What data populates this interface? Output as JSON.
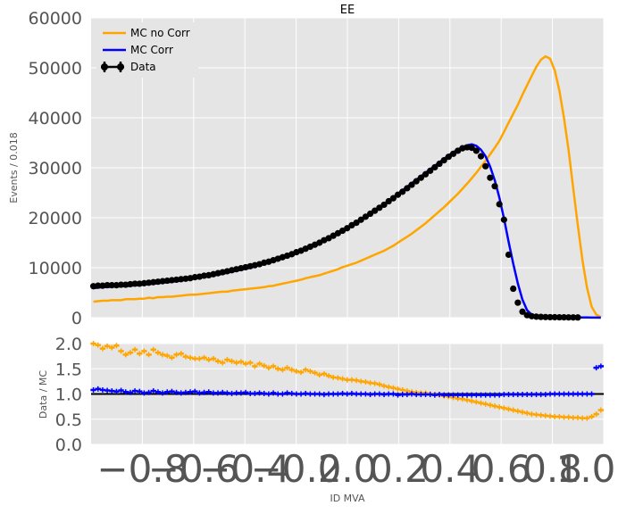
{
  "chart_data": [
    {
      "type": "line",
      "title": "EE",
      "ylabel": "Events / 0.018",
      "xlim": [
        -1.0,
        1.0
      ],
      "ylim": [
        0,
        60000
      ],
      "yticks": [
        "0",
        "10000",
        "20000",
        "30000",
        "40000",
        "50000",
        "60000"
      ],
      "grid": true,
      "legend_position": "top-left",
      "x": [
        -0.991,
        -0.973,
        -0.955,
        -0.937,
        -0.919,
        -0.901,
        -0.883,
        -0.865,
        -0.847,
        -0.829,
        -0.811,
        -0.793,
        -0.775,
        -0.757,
        -0.739,
        -0.721,
        -0.703,
        -0.685,
        -0.667,
        -0.649,
        -0.631,
        -0.613,
        -0.595,
        -0.577,
        -0.559,
        -0.541,
        -0.523,
        -0.505,
        -0.487,
        -0.469,
        -0.451,
        -0.433,
        -0.415,
        -0.397,
        -0.379,
        -0.361,
        -0.343,
        -0.325,
        -0.307,
        -0.289,
        -0.271,
        -0.253,
        -0.235,
        -0.217,
        -0.199,
        -0.181,
        -0.163,
        -0.145,
        -0.127,
        -0.109,
        -0.091,
        -0.073,
        -0.055,
        -0.037,
        -0.019,
        -0.001,
        0.017,
        0.035,
        0.053,
        0.071,
        0.089,
        0.107,
        0.125,
        0.143,
        0.161,
        0.179,
        0.197,
        0.215,
        0.233,
        0.251,
        0.269,
        0.287,
        0.305,
        0.323,
        0.341,
        0.359,
        0.377,
        0.395,
        0.413,
        0.431,
        0.449,
        0.467,
        0.485,
        0.503,
        0.521,
        0.539,
        0.557,
        0.575,
        0.593,
        0.611,
        0.629,
        0.647,
        0.665,
        0.683,
        0.701,
        0.719,
        0.737,
        0.755,
        0.773,
        0.791,
        0.809,
        0.827,
        0.845,
        0.863,
        0.881,
        0.899,
        0.917,
        0.935,
        0.953,
        0.971,
        0.989
      ],
      "series": [
        {
          "name": "MC no Corr",
          "color": "#ffa500",
          "values": [
            3200,
            3300,
            3400,
            3400,
            3500,
            3500,
            3500,
            3700,
            3700,
            3700,
            3800,
            3800,
            4000,
            3900,
            4100,
            4100,
            4200,
            4200,
            4300,
            4400,
            4500,
            4600,
            4600,
            4700,
            4800,
            4900,
            5000,
            5100,
            5200,
            5200,
            5400,
            5500,
            5600,
            5700,
            5800,
            5900,
            6000,
            6100,
            6300,
            6400,
            6600,
            6800,
            7000,
            7200,
            7400,
            7600,
            7900,
            8100,
            8300,
            8500,
            8800,
            9100,
            9400,
            9700,
            10100,
            10400,
            10700,
            11000,
            11400,
            11800,
            12200,
            12600,
            13000,
            13400,
            13900,
            14400,
            15000,
            15600,
            16200,
            16800,
            17500,
            18200,
            18900,
            19700,
            20500,
            21300,
            22100,
            23000,
            23900,
            24800,
            25800,
            26800,
            27900,
            29000,
            30200,
            31400,
            32700,
            34000,
            35400,
            37200,
            39000,
            40800,
            42600,
            44600,
            46500,
            48400,
            50200,
            51600,
            52300,
            51800,
            49500,
            45500,
            40000,
            33500,
            26000,
            18500,
            11500,
            6000,
            2200,
            600,
            100
          ]
        },
        {
          "name": "MC Corr",
          "color": "#0000ff",
          "values": [
            5900,
            6000,
            6100,
            6100,
            6200,
            6200,
            6300,
            6300,
            6400,
            6500,
            6500,
            6600,
            6700,
            6800,
            6900,
            7000,
            7100,
            7200,
            7300,
            7400,
            7600,
            7700,
            7800,
            8000,
            8100,
            8300,
            8500,
            8600,
            8800,
            9000,
            9200,
            9400,
            9600,
            9800,
            10000,
            10300,
            10500,
            10800,
            11000,
            11300,
            11600,
            11900,
            12200,
            12600,
            12900,
            13300,
            13700,
            14100,
            14500,
            14900,
            15400,
            15800,
            16300,
            16800,
            17300,
            17900,
            18400,
            19000,
            19600,
            20200,
            20800,
            21400,
            22100,
            22700,
            23400,
            24100,
            24800,
            25500,
            26200,
            26900,
            27600,
            28300,
            29000,
            29700,
            30400,
            31100,
            31800,
            32500,
            33100,
            33600,
            34100,
            34500,
            34700,
            34400,
            33600,
            32300,
            30200,
            27500,
            24000,
            19800,
            15200,
            10800,
            6800,
            3600,
            1500,
            600,
            300,
            200,
            150,
            120,
            100,
            90,
            80,
            70,
            60,
            50,
            40,
            30,
            20,
            10,
            5
          ]
        },
        {
          "name": "Data",
          "color": "#000000",
          "values": [
            6300,
            6400,
            6400,
            6500,
            6500,
            6500,
            6600,
            6600,
            6700,
            6800,
            6800,
            6900,
            7000,
            7100,
            7200,
            7300,
            7400,
            7500,
            7600,
            7700,
            7800,
            7900,
            8100,
            8200,
            8400,
            8500,
            8700,
            8900,
            9100,
            9300,
            9500,
            9700,
            9900,
            10100,
            10300,
            10500,
            10700,
            11000,
            11200,
            11500,
            11800,
            12100,
            12400,
            12700,
            13100,
            13400,
            13800,
            14200,
            14600,
            15000,
            15500,
            15900,
            16400,
            16900,
            17400,
            17900,
            18500,
            19000,
            19600,
            20200,
            20800,
            21400,
            22000,
            22600,
            23300,
            23900,
            24600,
            25200,
            25900,
            26600,
            27300,
            28000,
            28700,
            29400,
            30100,
            30800,
            31500,
            32200,
            32800,
            33400,
            33900,
            34100,
            34000,
            33400,
            32300,
            30300,
            28000,
            26300,
            22700,
            19600,
            12600,
            5800,
            3000,
            1200,
            500,
            300,
            200,
            150,
            120,
            100,
            90,
            80,
            70,
            60,
            50,
            40,
            30,
            20,
            10,
            5,
            5
          ]
        }
      ]
    },
    {
      "type": "line",
      "ylabel": "Data / MC",
      "xlabel": "ID MVA",
      "xlim": [
        -1.0,
        1.0
      ],
      "ylim": [
        0,
        2
      ],
      "yticks": [
        "0.0",
        "0.5",
        "1.0",
        "1.5",
        "2.0"
      ],
      "xticks": [
        "−0.8",
        "−0.6",
        "−0.4",
        "−0.2",
        "0.0",
        "0.2",
        "0.4",
        "0.6",
        "0.8",
        "1.0"
      ],
      "grid": true,
      "reference_line": 1.0,
      "series": [
        {
          "name": "MC no Corr",
          "color": "#ffa500",
          "values": [
            2.0,
            1.97,
            1.9,
            1.95,
            1.92,
            1.96,
            1.85,
            1.78,
            1.82,
            1.88,
            1.8,
            1.85,
            1.78,
            1.88,
            1.82,
            1.78,
            1.76,
            1.72,
            1.78,
            1.8,
            1.74,
            1.72,
            1.7,
            1.7,
            1.72,
            1.68,
            1.7,
            1.65,
            1.62,
            1.68,
            1.65,
            1.62,
            1.64,
            1.6,
            1.62,
            1.55,
            1.6,
            1.56,
            1.52,
            1.55,
            1.5,
            1.48,
            1.52,
            1.48,
            1.45,
            1.43,
            1.48,
            1.45,
            1.42,
            1.38,
            1.4,
            1.36,
            1.33,
            1.32,
            1.3,
            1.28,
            1.28,
            1.27,
            1.25,
            1.24,
            1.22,
            1.21,
            1.19,
            1.16,
            1.14,
            1.12,
            1.1,
            1.08,
            1.06,
            1.04,
            1.03,
            1.02,
            1.02,
            1.0,
            0.99,
            0.98,
            0.96,
            0.95,
            0.93,
            0.91,
            0.9,
            0.88,
            0.86,
            0.84,
            0.82,
            0.8,
            0.78,
            0.76,
            0.74,
            0.72,
            0.7,
            0.68,
            0.66,
            0.64,
            0.62,
            0.6,
            0.59,
            0.58,
            0.57,
            0.56,
            0.55,
            0.55,
            0.54,
            0.54,
            0.53,
            0.53,
            0.52,
            0.52,
            0.55,
            0.6,
            0.68
          ]
        },
        {
          "name": "MC Corr",
          "color": "#0000ff",
          "values": [
            1.08,
            1.1,
            1.08,
            1.07,
            1.06,
            1.05,
            1.07,
            1.04,
            1.03,
            1.06,
            1.05,
            1.02,
            1.03,
            1.06,
            1.04,
            1.02,
            1.04,
            1.05,
            1.03,
            1.02,
            1.03,
            1.04,
            1.05,
            1.02,
            1.03,
            1.04,
            1.02,
            1.02,
            1.03,
            1.02,
            1.01,
            1.02,
            1.02,
            1.03,
            1.01,
            1.01,
            1.02,
            1.01,
            1.0,
            1.02,
            1.0,
            1.0,
            1.02,
            1.01,
            1.0,
            1.0,
            1.01,
            1.0,
            1.0,
            1.0,
            0.99,
            1.0,
            1.0,
            1.0,
            1.01,
            1.0,
            1.01,
            1.0,
            1.0,
            1.0,
            0.99,
            1.0,
            1.0,
            0.99,
            1.0,
            1.0,
            0.98,
            0.99,
            0.99,
            1.0,
            0.99,
            0.99,
            0.99,
            0.99,
            0.98,
            0.99,
            0.98,
            0.98,
            0.98,
            0.98,
            0.98,
            0.98,
            0.98,
            0.98,
            0.98,
            0.98,
            0.98,
            0.98,
            0.98,
            0.99,
            0.99,
            0.99,
            0.99,
            0.99,
            0.99,
            0.99,
            0.99,
            0.99,
            0.99,
            1.0,
            1.0,
            1.0,
            1.0,
            1.0,
            1.0,
            1.0,
            1.0,
            1.0,
            1.0,
            1.52,
            1.55
          ]
        }
      ]
    }
  ]
}
